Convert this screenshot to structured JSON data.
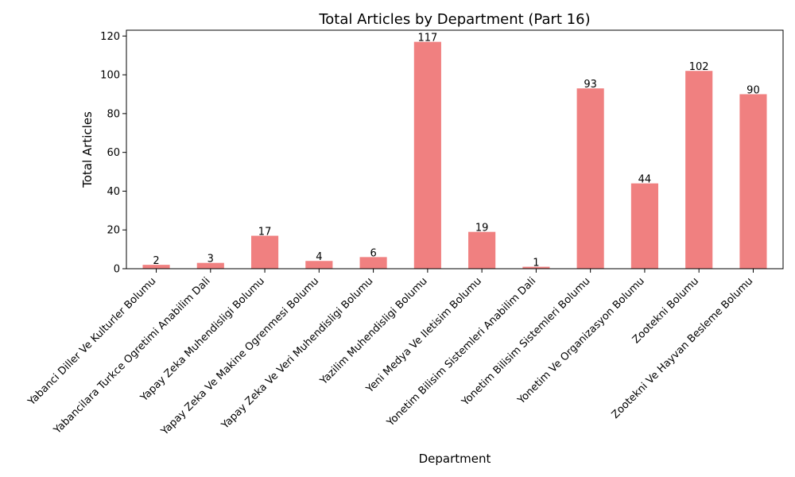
{
  "chart_data": {
    "type": "bar",
    "title": "Total Articles by Department (Part 16)",
    "xlabel": "Department",
    "ylabel": "Total Articles",
    "ylim": [
      0,
      123
    ],
    "yticks": [
      0,
      20,
      40,
      60,
      80,
      100,
      120
    ],
    "grid": false,
    "legend": "none",
    "bar_color": "#f08080",
    "categories": [
      "Yabanci Diller Ve Kulturler Bolumu",
      "Yabancilara Turkce Ogretimi Anabilim Dali",
      "Yapay Zeka Muhendisligi Bolumu",
      "Yapay Zeka Ve Makine Ogrenmesi Bolumu",
      "Yapay Zeka Ve Veri Muhendisligi Bolumu",
      "Yazilim Muhendisligi Bolumu",
      "Yeni Medya Ve Iletisim Bolumu",
      "Yonetim Bilisim Sistemleri Anabilim Dali",
      "Yonetim Bilisim Sistemleri Bolumu",
      "Yonetim Ve Organizasyon Bolumu",
      "Zootekni Bolumu",
      "Zootekni Ve Hayvan Besleme Bolumu"
    ],
    "values": [
      2,
      3,
      17,
      4,
      6,
      117,
      19,
      1,
      93,
      44,
      102,
      90
    ]
  }
}
